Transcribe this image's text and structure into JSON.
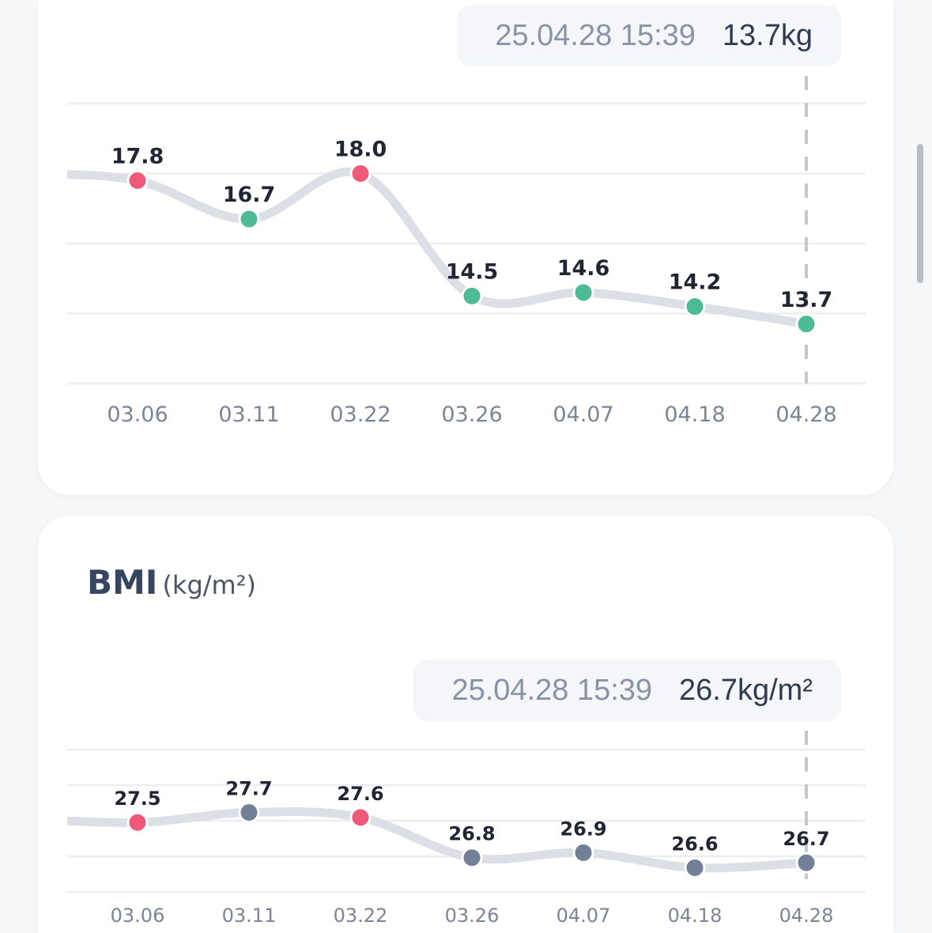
{
  "colors": {
    "line": "#dcdfe5",
    "grid": "#eceef1",
    "high": "#f05a78",
    "normal": "#4cbb96",
    "neutral": "#718096",
    "label": "#1f2533",
    "tick": "#7a8596",
    "cursor": "#c4c8ce"
  },
  "chart_data": [
    {
      "type": "line",
      "title": "",
      "unit": "kg",
      "categories": [
        "03.06",
        "03.11",
        "03.22",
        "03.26",
        "04.07",
        "04.18",
        "04.28"
      ],
      "values": [
        17.8,
        16.7,
        18.0,
        14.5,
        14.6,
        14.2,
        13.7
      ],
      "value_labels": [
        "17.8",
        "16.7",
        "18.0",
        "14.5",
        "14.6",
        "14.2",
        "13.7"
      ],
      "point_status": [
        "high",
        "normal",
        "high",
        "normal",
        "normal",
        "normal",
        "normal"
      ],
      "ylim": [
        12,
        20
      ],
      "grid": true,
      "selected_index": 6,
      "tooltip": {
        "time": "25.04.28 15:39",
        "value": "13.7kg"
      }
    },
    {
      "type": "line",
      "title": "BMI",
      "unit": "(kg/m²)",
      "categories": [
        "03.06",
        "03.11",
        "03.22",
        "03.26",
        "04.07",
        "04.18",
        "04.28"
      ],
      "values": [
        27.5,
        27.7,
        27.6,
        26.8,
        26.9,
        26.6,
        26.7
      ],
      "value_labels": [
        "27.5",
        "27.7",
        "27.6",
        "26.8",
        "26.9",
        "26.6",
        "26.7"
      ],
      "point_status": [
        "high",
        "neutral",
        "high",
        "neutral",
        "neutral",
        "neutral",
        "neutral"
      ],
      "ylim": [
        26.12,
        28.95
      ],
      "grid": true,
      "selected_index": 6,
      "tooltip": {
        "time": "25.04.28 15:39",
        "value": "26.7kg/m²"
      }
    }
  ]
}
